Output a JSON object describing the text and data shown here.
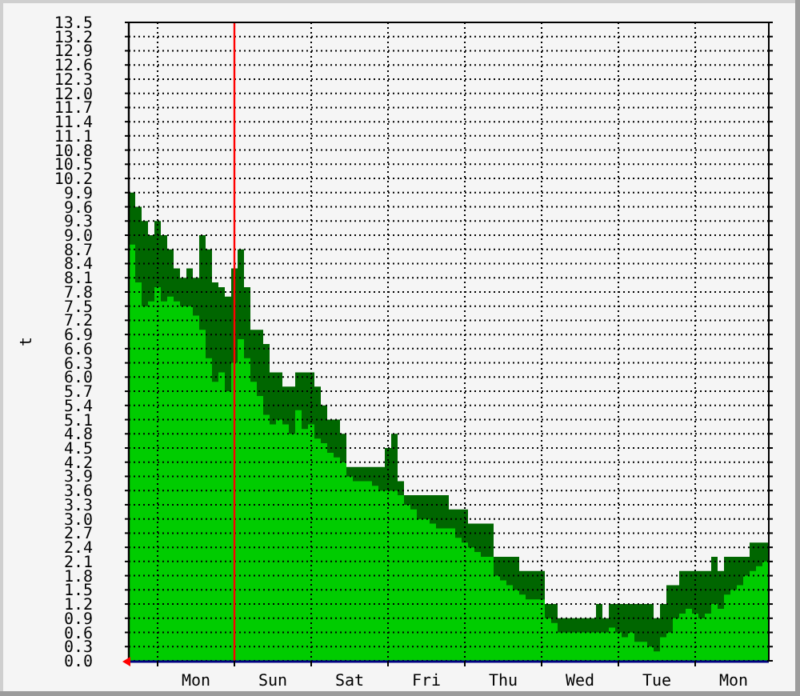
{
  "chart_data": {
    "type": "area",
    "ylabel": "t",
    "categories": [
      null,
      null,
      null,
      null,
      null,
      null,
      null,
      null,
      null,
      null,
      "Mon",
      null,
      null,
      null,
      null,
      null,
      null,
      null,
      null,
      null,
      null,
      null,
      "Sun",
      null,
      null,
      null,
      null,
      null,
      null,
      null,
      null,
      null,
      null,
      null,
      "Sat",
      null,
      null,
      null,
      null,
      null,
      null,
      null,
      null,
      null,
      null,
      null,
      "Fri",
      null,
      null,
      null,
      null,
      null,
      null,
      null,
      null,
      null,
      null,
      null,
      "Thu",
      null,
      null,
      null,
      null,
      null,
      null,
      null,
      null,
      null,
      null,
      null,
      "Wed",
      null,
      null,
      null,
      null,
      null,
      null,
      null,
      null,
      null,
      null,
      null,
      "Tue",
      null,
      null,
      null,
      null,
      null,
      null,
      null,
      null,
      null,
      null,
      null,
      "Mon",
      null,
      null,
      null,
      null,
      null
    ],
    "series": [
      {
        "color": "#006600",
        "values": [
          9.9,
          9.6,
          9.3,
          9.0,
          9.3,
          9.0,
          8.7,
          8.3,
          8.1,
          8.3,
          8.1,
          9.0,
          8.7,
          8.0,
          7.9,
          7.7,
          8.3,
          8.7,
          7.9,
          7.0,
          7.0,
          6.7,
          6.1,
          6.1,
          5.8,
          5.8,
          6.1,
          6.1,
          6.1,
          5.8,
          5.4,
          5.1,
          5.1,
          4.8,
          4.1,
          4.1,
          4.1,
          4.1,
          4.1,
          4.1,
          4.5,
          4.8,
          3.8,
          3.5,
          3.5,
          3.5,
          3.5,
          3.5,
          3.5,
          3.5,
          3.2,
          3.2,
          3.2,
          2.9,
          2.9,
          2.9,
          2.9,
          2.2,
          2.2,
          2.2,
          2.2,
          1.9,
          1.9,
          1.9,
          1.9,
          1.2,
          1.2,
          0.9,
          0.9,
          0.9,
          0.9,
          0.9,
          0.9,
          1.2,
          0.9,
          1.2,
          1.2,
          1.2,
          1.2,
          1.2,
          1.2,
          1.2,
          0.9,
          1.2,
          1.6,
          1.6,
          1.9,
          1.9,
          1.9,
          1.9,
          1.9,
          2.2,
          1.9,
          2.2,
          2.2,
          2.2,
          2.2,
          2.5,
          2.5,
          2.5
        ]
      },
      {
        "color": "#00cc00",
        "values": [
          8.8,
          8.0,
          7.5,
          7.6,
          7.9,
          7.6,
          7.7,
          7.6,
          7.5,
          7.5,
          7.3,
          7.0,
          6.4,
          5.9,
          6.1,
          5.7,
          6.3,
          6.8,
          6.4,
          5.9,
          5.6,
          5.2,
          5.0,
          5.1,
          5.0,
          4.8,
          5.3,
          4.9,
          5.0,
          4.7,
          4.6,
          4.4,
          4.3,
          4.2,
          3.9,
          3.8,
          3.8,
          3.8,
          3.7,
          3.6,
          3.6,
          3.6,
          3.5,
          3.3,
          3.2,
          3.0,
          3.0,
          2.9,
          2.8,
          2.8,
          2.8,
          2.6,
          2.5,
          2.4,
          2.3,
          2.2,
          2.2,
          1.8,
          1.7,
          1.6,
          1.5,
          1.4,
          1.3,
          1.3,
          1.3,
          0.9,
          0.8,
          0.6,
          0.6,
          0.6,
          0.6,
          0.6,
          0.6,
          0.6,
          0.6,
          0.7,
          0.6,
          0.5,
          0.6,
          0.4,
          0.4,
          0.3,
          0.2,
          0.5,
          0.6,
          0.9,
          1.0,
          1.1,
          1.0,
          0.9,
          1.0,
          1.2,
          1.1,
          1.4,
          1.5,
          1.6,
          1.8,
          1.9,
          2.0,
          2.1
        ]
      }
    ],
    "ylim": [
      0,
      13.5
    ],
    "yticks": [
      {
        "value": 0,
        "label": "0.0"
      },
      0.3,
      0.6,
      0.9,
      1.2,
      1.5,
      1.8,
      2.1,
      2.4,
      2.7,
      {
        "value": 3,
        "label": "3.0"
      },
      3.3,
      3.6,
      3.9,
      4.2,
      4.5,
      4.8,
      5.1,
      5.4,
      5.7,
      {
        "value": 6,
        "label": "6.0"
      },
      6.3,
      6.6,
      6.9,
      7.2,
      7.5,
      7.8,
      8.1,
      8.4,
      8.7,
      {
        "value": 9,
        "label": "9.0"
      },
      9.3,
      9.6,
      9.9,
      10.2,
      10.5,
      10.8,
      11.1,
      11.4,
      11.7,
      {
        "value": 12,
        "label": "12.0"
      },
      12.3,
      12.6,
      12.9,
      13.2,
      13.5
    ],
    "grid": true
  }
}
